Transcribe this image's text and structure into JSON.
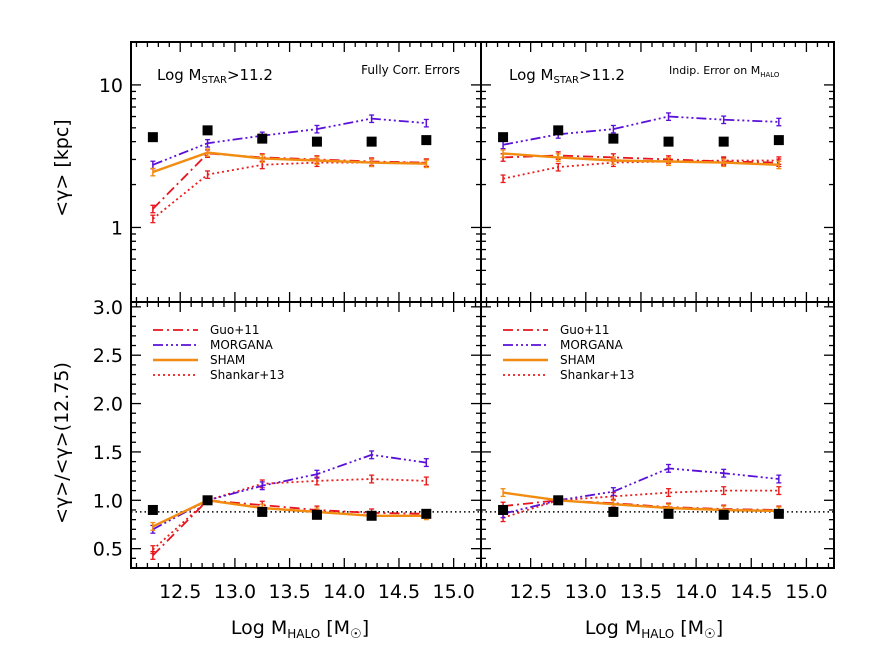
{
  "colors": {
    "guo": "#e8141e",
    "morgana": "#5a10d8",
    "sham": "#f28c10",
    "shankar": "#ea1c1c",
    "data": "#000000",
    "frame": "#000000"
  },
  "shared_x": {
    "label_main": "Log M",
    "label_sub": "HALO",
    "label_unit_open": " [M",
    "label_unit_close": "]",
    "xlim": [
      12.05,
      15.25
    ],
    "ticks": [
      "12.5",
      "13.0",
      "13.5",
      "14.0",
      "14.5",
      "15.0"
    ],
    "tick_values": [
      12.5,
      13.0,
      13.5,
      14.0,
      14.5,
      15.0
    ]
  },
  "panels_top": {
    "ylabel": "<γ> [kpc]",
    "ylim_log": [
      0.3,
      20
    ],
    "ytick_labels": [
      "10",
      "1"
    ],
    "ytick_values": [
      10,
      1
    ]
  },
  "panels_bottom": {
    "ylabel": "<γ>/<γ>(12.75)",
    "ylim": [
      0.3,
      3.05
    ],
    "ytick_labels": [
      "3.0",
      "2.5",
      "2.0",
      "1.5",
      "1.0",
      "0.5"
    ],
    "ytick_values": [
      3.0,
      2.5,
      2.0,
      1.5,
      1.0,
      0.5
    ],
    "ref_line": 0.88
  },
  "legend": [
    {
      "key": "guo",
      "label": "Guo+11",
      "dash": "10,4,2,4"
    },
    {
      "key": "morgana",
      "label": "MORGANA",
      "dash": "10,3,2,3,2,3,2,3"
    },
    {
      "key": "sham",
      "label": "SHAM",
      "dash": ""
    },
    {
      "key": "shankar",
      "label": "Shankar+13",
      "dash": "2,3"
    }
  ],
  "annotations": {
    "top_left_cut_main": "Log M",
    "top_left_cut_sub": "STAR",
    "top_left_cut_val": ">11.2",
    "top_left_note": "Fully Corr. Errors",
    "top_right_cut_main": "Log M",
    "top_right_cut_sub": "STAR",
    "top_right_cut_val": ">11.2",
    "top_right_note_main": "Indip. Error on M",
    "top_right_note_sub": "HALO"
  },
  "chart_data": [
    {
      "type": "line",
      "panel": "top-left",
      "x": [
        12.25,
        12.75,
        13.25,
        13.75,
        14.25,
        14.75
      ],
      "yscale": "log",
      "series": [
        {
          "name": "Guo+11",
          "key": "guo",
          "values": [
            1.35,
            3.3,
            3.1,
            3.0,
            2.9,
            2.85
          ]
        },
        {
          "name": "MORGANA",
          "key": "morgana",
          "values": [
            2.75,
            3.9,
            4.4,
            4.9,
            5.8,
            5.4
          ]
        },
        {
          "name": "SHAM",
          "key": "sham",
          "values": [
            2.45,
            3.35,
            3.05,
            2.95,
            2.85,
            2.8
          ]
        },
        {
          "name": "Shankar+13",
          "key": "shankar",
          "values": [
            1.15,
            2.35,
            2.75,
            2.85,
            2.85,
            2.85
          ]
        }
      ],
      "data_points": [
        4.3,
        4.8,
        4.2,
        4.0,
        4.0,
        4.1
      ]
    },
    {
      "type": "line",
      "panel": "top-right",
      "x": [
        12.25,
        12.75,
        13.25,
        13.75,
        14.25,
        14.75
      ],
      "yscale": "log",
      "series": [
        {
          "name": "Guo+11",
          "key": "guo",
          "values": [
            3.1,
            3.2,
            3.1,
            3.0,
            2.9,
            2.85
          ]
        },
        {
          "name": "MORGANA",
          "key": "morgana",
          "values": [
            3.8,
            4.5,
            4.9,
            6.0,
            5.7,
            5.5
          ]
        },
        {
          "name": "SHAM",
          "key": "sham",
          "values": [
            3.3,
            3.1,
            2.95,
            2.9,
            2.85,
            2.75
          ]
        },
        {
          "name": "Shankar+13",
          "key": "shankar",
          "values": [
            2.2,
            2.65,
            2.85,
            2.9,
            2.95,
            2.95
          ]
        }
      ],
      "data_points": [
        4.3,
        4.8,
        4.2,
        4.0,
        4.0,
        4.1
      ]
    },
    {
      "type": "line",
      "panel": "bottom-left",
      "x": [
        12.25,
        12.75,
        13.25,
        13.75,
        14.25,
        14.75
      ],
      "series": [
        {
          "name": "Guo+11",
          "key": "guo",
          "values": [
            0.43,
            1.0,
            0.95,
            0.9,
            0.87,
            0.86
          ]
        },
        {
          "name": "MORGANA",
          "key": "morgana",
          "values": [
            0.7,
            1.0,
            1.15,
            1.27,
            1.47,
            1.39
          ]
        },
        {
          "name": "SHAM",
          "key": "sham",
          "values": [
            0.73,
            1.0,
            0.92,
            0.88,
            0.84,
            0.84
          ]
        },
        {
          "name": "Shankar+13",
          "key": "shankar",
          "values": [
            0.49,
            1.0,
            1.17,
            1.2,
            1.22,
            1.2
          ]
        }
      ],
      "data_points": [
        0.9,
        1.0,
        0.88,
        0.85,
        0.84,
        0.86
      ]
    },
    {
      "type": "line",
      "panel": "bottom-right",
      "x": [
        12.25,
        12.75,
        13.25,
        13.75,
        14.25,
        14.75
      ],
      "series": [
        {
          "name": "Guo+11",
          "key": "guo",
          "values": [
            0.94,
            1.0,
            0.97,
            0.93,
            0.91,
            0.9
          ]
        },
        {
          "name": "MORGANA",
          "key": "morgana",
          "values": [
            0.86,
            1.0,
            1.09,
            1.33,
            1.28,
            1.22
          ]
        },
        {
          "name": "SHAM",
          "key": "sham",
          "values": [
            1.08,
            1.0,
            0.96,
            0.92,
            0.9,
            0.89
          ]
        },
        {
          "name": "Shankar+13",
          "key": "shankar",
          "values": [
            0.82,
            1.0,
            1.04,
            1.08,
            1.1,
            1.1
          ]
        }
      ],
      "data_points": [
        0.9,
        1.0,
        0.88,
        0.86,
        0.85,
        0.86
      ]
    }
  ]
}
